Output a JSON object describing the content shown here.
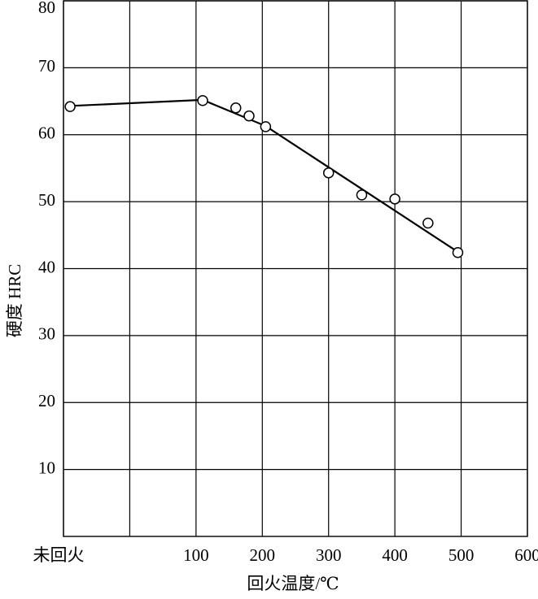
{
  "chart_data": {
    "type": "line",
    "x_label": "回火温度/℃",
    "y_label": "硬度 HRC",
    "series": [
      {
        "color": "#000000",
        "marker": "none",
        "x": [
          -90,
          110,
          205,
          495
        ],
        "values": [
          64.3,
          65.2,
          61.3,
          42.5
        ]
      },
      {
        "color": "#000000",
        "marker": "open-circle",
        "x": [
          -90,
          110,
          160,
          180,
          205,
          300,
          350,
          400,
          450,
          495
        ],
        "values": [
          64.2,
          65.1,
          64.0,
          62.8,
          61.2,
          54.3,
          51.0,
          50.4,
          46.8,
          42.4
        ]
      }
    ],
    "xlim": [
      -100,
      600
    ],
    "xticks": [
      {
        "value": -100,
        "label": "未回火"
      },
      100,
      200,
      300,
      400,
      500,
      600
    ],
    "ylim": [
      0,
      80
    ],
    "yticks": [
      10,
      20,
      30,
      40,
      50,
      60,
      70,
      80
    ],
    "grid": true
  }
}
